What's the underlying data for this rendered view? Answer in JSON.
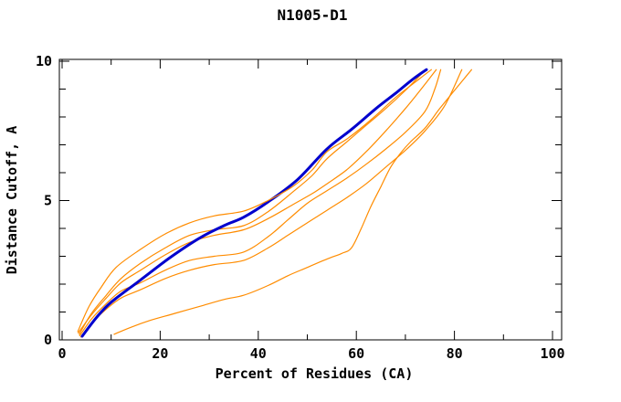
{
  "title": "N1005-D1",
  "colors": {
    "background": "#FFFFFF",
    "frame": "#000000",
    "orange": "#FF8C00",
    "blue": "#0000CD"
  },
  "chart_data": {
    "type": "line",
    "title": "N1005-D1",
    "xlabel": "Percent of Residues (CA)",
    "ylabel": "Distance Cutoff, A",
    "xlim": [
      0,
      102
    ],
    "ylim": [
      0,
      10.1
    ],
    "grid": false,
    "legend": "none",
    "x_major_ticks": [
      0,
      20,
      40,
      60,
      80,
      100
    ],
    "x_minor_ticks": [
      10,
      30,
      50,
      70,
      90
    ],
    "y_major_ticks": [
      0,
      5,
      10
    ],
    "y_minor_ticks": [
      1,
      2,
      3,
      4,
      6,
      7,
      8,
      9
    ],
    "series": [
      {
        "id": "prediction-2",
        "color_key": "orange",
        "width": 1.2,
        "points": [
          [
            3.5,
            0.2
          ],
          [
            6,
            0.95
          ],
          [
            9,
            1.6
          ],
          [
            12,
            2.2
          ],
          [
            16,
            2.75
          ],
          [
            21,
            3.3
          ],
          [
            26,
            3.75
          ],
          [
            31,
            3.95
          ],
          [
            37,
            4.1
          ],
          [
            42,
            4.6
          ],
          [
            47,
            5.3
          ],
          [
            51,
            5.9
          ],
          [
            54,
            6.5
          ],
          [
            58,
            7.1
          ],
          [
            62,
            7.7
          ],
          [
            66,
            8.3
          ],
          [
            70,
            8.95
          ],
          [
            74,
            9.68
          ]
        ]
      },
      {
        "id": "prediction-3",
        "color_key": "orange",
        "width": 1.2,
        "points": [
          [
            3.3,
            0.25
          ],
          [
            6,
            0.9
          ],
          [
            9,
            1.5
          ],
          [
            12,
            2.05
          ],
          [
            16,
            2.5
          ],
          [
            21,
            3.05
          ],
          [
            26,
            3.5
          ],
          [
            31,
            3.75
          ],
          [
            37,
            3.95
          ],
          [
            42,
            4.35
          ],
          [
            47,
            4.85
          ],
          [
            51,
            5.25
          ],
          [
            54,
            5.6
          ],
          [
            58,
            6.1
          ],
          [
            62,
            6.75
          ],
          [
            66,
            7.5
          ],
          [
            70,
            8.3
          ],
          [
            73,
            8.95
          ],
          [
            76.3,
            9.7
          ]
        ]
      },
      {
        "id": "prediction-4",
        "color_key": "orange",
        "width": 1.2,
        "points": [
          [
            3.6,
            0.15
          ],
          [
            6,
            0.75
          ],
          [
            9,
            1.3
          ],
          [
            12,
            1.75
          ],
          [
            16,
            2.05
          ],
          [
            21,
            2.5
          ],
          [
            26,
            2.85
          ],
          [
            31,
            3.0
          ],
          [
            37,
            3.15
          ],
          [
            42,
            3.7
          ],
          [
            46,
            4.3
          ],
          [
            50,
            4.9
          ],
          [
            54,
            5.35
          ],
          [
            58,
            5.8
          ],
          [
            62,
            6.3
          ],
          [
            66,
            6.85
          ],
          [
            70,
            7.45
          ],
          [
            74,
            8.2
          ],
          [
            76,
            9.0
          ],
          [
            77.2,
            9.7
          ]
        ]
      },
      {
        "id": "prediction-5",
        "color_key": "orange",
        "width": 1.2,
        "points": [
          [
            3.8,
            0.1
          ],
          [
            6,
            0.6
          ],
          [
            9,
            1.1
          ],
          [
            12,
            1.5
          ],
          [
            16,
            1.8
          ],
          [
            21,
            2.2
          ],
          [
            26,
            2.5
          ],
          [
            31,
            2.7
          ],
          [
            37,
            2.85
          ],
          [
            42,
            3.3
          ],
          [
            46,
            3.75
          ],
          [
            50,
            4.2
          ],
          [
            54,
            4.65
          ],
          [
            58,
            5.1
          ],
          [
            62,
            5.6
          ],
          [
            66,
            6.2
          ],
          [
            70,
            6.8
          ],
          [
            74,
            7.5
          ],
          [
            78,
            8.4
          ],
          [
            81.5,
            9.7
          ]
        ]
      },
      {
        "id": "prediction-6",
        "color_key": "orange",
        "width": 1.2,
        "points": [
          [
            10.6,
            0.2
          ],
          [
            14,
            0.45
          ],
          [
            18,
            0.7
          ],
          [
            23,
            0.95
          ],
          [
            28,
            1.2
          ],
          [
            33,
            1.45
          ],
          [
            37,
            1.6
          ],
          [
            42,
            1.95
          ],
          [
            46,
            2.3
          ],
          [
            50,
            2.6
          ],
          [
            54,
            2.9
          ],
          [
            57,
            3.1
          ],
          [
            59,
            3.3
          ],
          [
            61,
            4.0
          ],
          [
            63,
            4.8
          ],
          [
            65,
            5.5
          ],
          [
            67,
            6.2
          ],
          [
            69,
            6.7
          ],
          [
            71,
            7.1
          ],
          [
            74,
            7.6
          ],
          [
            77,
            8.3
          ],
          [
            80,
            8.95
          ],
          [
            83.5,
            9.7
          ]
        ]
      },
      {
        "id": "model-highlight",
        "color_key": "blue",
        "width": 3,
        "points": [
          [
            4.1,
            0.13
          ],
          [
            7,
            0.8
          ],
          [
            10,
            1.35
          ],
          [
            16,
            2.15
          ],
          [
            22,
            2.95
          ],
          [
            28,
            3.65
          ],
          [
            33,
            4.1
          ],
          [
            37,
            4.4
          ],
          [
            42,
            4.95
          ],
          [
            48,
            5.75
          ],
          [
            54,
            6.85
          ],
          [
            59,
            7.55
          ],
          [
            64,
            8.3
          ],
          [
            68,
            8.85
          ],
          [
            71.5,
            9.35
          ],
          [
            74.3,
            9.7
          ]
        ]
      },
      {
        "id": "prediction-1",
        "color_key": "orange",
        "width": 1.2,
        "points": [
          [
            3.2,
            0.3
          ],
          [
            5.5,
            1.2
          ],
          [
            8,
            1.9
          ],
          [
            11,
            2.6
          ],
          [
            16,
            3.25
          ],
          [
            21,
            3.8
          ],
          [
            26,
            4.2
          ],
          [
            31,
            4.45
          ],
          [
            37,
            4.62
          ],
          [
            42,
            5.0
          ],
          [
            47,
            5.5
          ],
          [
            51,
            6.1
          ],
          [
            54,
            6.75
          ],
          [
            58,
            7.2
          ],
          [
            63,
            7.9
          ],
          [
            68,
            8.7
          ],
          [
            72,
            9.25
          ],
          [
            75.3,
            9.7
          ]
        ]
      }
    ]
  }
}
